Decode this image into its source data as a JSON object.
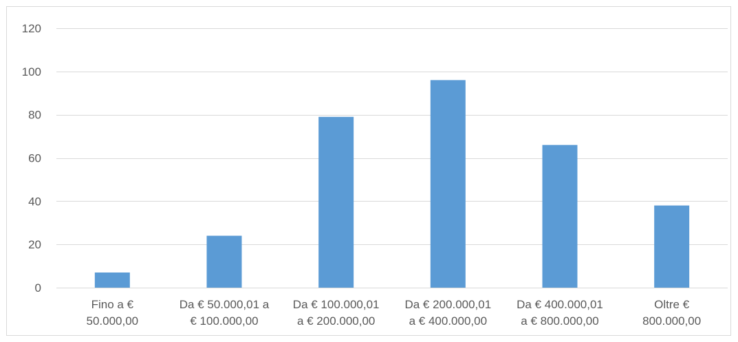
{
  "chart_data": {
    "type": "bar",
    "title": "",
    "xlabel": "",
    "ylabel": "",
    "categories": [
      [
        "Fino a €",
        "50.000,00"
      ],
      [
        "Da € 50.000,01 a",
        "€ 100.000,00"
      ],
      [
        "Da € 100.000,01",
        "a € 200.000,00"
      ],
      [
        "Da € 200.000,01",
        "a € 400.000,00"
      ],
      [
        "Da € 400.000,01",
        "a € 800.000,00"
      ],
      [
        "Oltre €",
        "800.000,00"
      ]
    ],
    "values": [
      7,
      24,
      79,
      96,
      66,
      38
    ],
    "ylim": [
      0,
      120
    ],
    "yticks": [
      0,
      20,
      40,
      60,
      80,
      100,
      120
    ],
    "grid": true,
    "legend": "none",
    "bar_color": "#5b9bd5",
    "grid_color": "#d9d9d9"
  }
}
